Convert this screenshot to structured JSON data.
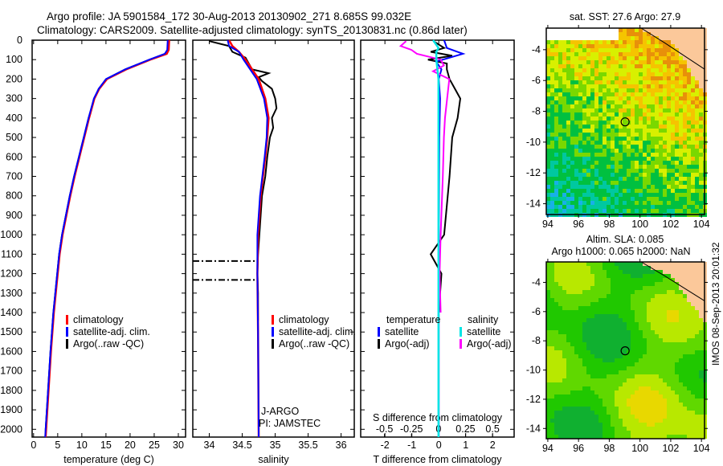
{
  "title_line1": "Argo profile: JA 5901584_172 30-Aug-2013 20130902_271 8.685S 99.032E",
  "title_line2": "Climatology: CARS2009. Satellite-adjusted climatology: synTS_20130831.nc (0.86d later)",
  "footer_stamp": "IMOS 08-Sep-2013 20:01:32",
  "colors": {
    "climatology": "#ff0000",
    "satellite": "#0000ff",
    "argo": "#000000",
    "sal_sat": "#00e5e5",
    "sal_argo": "#ff00ff"
  },
  "chart_data": [
    {
      "type": "line",
      "name": "temperature",
      "xlabel": "temperature (deg C)",
      "ylabel": "depth",
      "xlim": [
        -0.3,
        31.5
      ],
      "ylim": [
        2040,
        0
      ],
      "xticks": [
        "0",
        "5",
        "10",
        "15",
        "20",
        "25",
        "30"
      ],
      "yticks": [
        "0",
        "100",
        "200",
        "300",
        "400",
        "500",
        "600",
        "700",
        "800",
        "900",
        "1000",
        "1100",
        "1200",
        "1300",
        "1400",
        "1500",
        "1600",
        "1700",
        "1800",
        "1900",
        "2000"
      ],
      "legend": [
        "climatology",
        "satellite-adj. clim.",
        "Argo(..raw -QC)"
      ],
      "series": [
        {
          "name": "climatology",
          "depth": [
            0,
            50,
            70,
            100,
            150,
            200,
            250,
            300,
            400,
            500,
            600,
            700,
            800,
            900,
            1000,
            1100,
            1200,
            1400,
            1600,
            1800,
            2000,
            2040
          ],
          "values": [
            28.1,
            28.0,
            27.6,
            24.2,
            19.2,
            15.2,
            13.6,
            12.6,
            11.5,
            10.5,
            9.5,
            8.5,
            7.6,
            6.8,
            6.0,
            5.4,
            5.0,
            4.2,
            3.6,
            3.1,
            2.6,
            2.5
          ]
        },
        {
          "name": "satellite-adj. clim.",
          "depth": [
            0,
            50,
            70,
            100,
            150,
            200,
            250,
            300,
            400,
            500,
            600,
            700,
            800,
            900,
            1000,
            1100,
            1200,
            1400,
            1600,
            1800,
            2000,
            2040
          ],
          "values": [
            27.8,
            27.7,
            27.2,
            24.0,
            19.0,
            15.0,
            13.5,
            12.5,
            11.4,
            10.4,
            9.4,
            8.4,
            7.5,
            6.7,
            5.9,
            5.3,
            4.9,
            4.1,
            3.5,
            3.0,
            2.5,
            2.4
          ]
        },
        {
          "name": "Argo(..raw -QC)",
          "depth": [
            5,
            50,
            70,
            100,
            150,
            200,
            250,
            300,
            400,
            500,
            600,
            700,
            800,
            900,
            1000,
            1100,
            1200,
            1400,
            1600,
            1800,
            2000,
            2040
          ],
          "values": [
            27.9,
            27.9,
            27.3,
            24.1,
            19.0,
            15.1,
            13.5,
            12.6,
            11.4,
            10.4,
            9.4,
            8.4,
            7.5,
            6.7,
            5.9,
            5.3,
            4.9,
            4.1,
            3.5,
            3.0,
            2.5,
            2.5
          ]
        }
      ]
    },
    {
      "type": "line",
      "name": "salinity",
      "xlabel": "salinity",
      "xlim": [
        33.75,
        36.2
      ],
      "ylim": [
        2040,
        0
      ],
      "xticks": [
        "34",
        "34.5",
        "35",
        "35.5",
        "36"
      ],
      "legend": [
        "climatology",
        "satellite-adj. clim.",
        "Argo(..raw -QC)"
      ],
      "annotations": [
        "J-ARGO",
        "PI: JAMSTEC"
      ],
      "flag_depths": [
        1135,
        1232
      ],
      "series": [
        {
          "name": "climatology",
          "depth": [
            0,
            30,
            60,
            100,
            150,
            200,
            300,
            400,
            500,
            600,
            800,
            1000,
            1200,
            1500,
            2040
          ],
          "values": [
            34.3,
            34.35,
            34.45,
            34.55,
            34.65,
            34.75,
            34.85,
            34.9,
            34.88,
            34.85,
            34.78,
            34.74,
            34.73,
            34.74,
            34.75
          ]
        },
        {
          "name": "satellite-adj. clim.",
          "depth": [
            0,
            30,
            60,
            100,
            150,
            200,
            300,
            400,
            500,
            600,
            800,
            1000,
            1200,
            1500,
            2040
          ],
          "values": [
            34.28,
            34.3,
            34.45,
            34.52,
            34.62,
            34.72,
            34.83,
            34.88,
            34.87,
            34.84,
            34.77,
            34.73,
            34.73,
            34.74,
            34.75
          ]
        },
        {
          "name": "Argo(..raw -QC)",
          "depth": [
            5,
            30,
            60,
            90,
            120,
            150,
            170,
            190,
            210,
            250,
            300,
            350,
            400,
            450,
            500,
            600,
            700,
            800,
            900,
            1000,
            1100,
            1200,
            1300,
            1440
          ],
          "values": [
            34.0,
            34.3,
            34.35,
            34.55,
            34.6,
            34.65,
            34.9,
            34.75,
            34.8,
            34.95,
            35.0,
            35.02,
            34.95,
            34.97,
            34.92,
            34.88,
            34.85,
            34.8,
            34.78,
            34.76,
            34.74,
            34.73,
            34.74,
            34.74
          ]
        }
      ]
    },
    {
      "type": "line",
      "name": "difference",
      "xlabel": "T difference from climatology",
      "x2label": "S difference from climatology",
      "xlim": [
        -2.9,
        2.8
      ],
      "x2lim": [
        -0.72,
        0.7
      ],
      "xticks": [
        "-2",
        "-1",
        "0",
        "1",
        "2"
      ],
      "x2ticks": [
        "-0.5",
        "-0.25",
        "0",
        "0.25",
        "0.5"
      ],
      "legend": {
        "temperature_header": "temperature",
        "salinity_header": "salinity",
        "items": [
          "satellite",
          "Argo(-adj)",
          "satellite",
          "Argo(-adj)"
        ]
      },
      "series": [
        {
          "name": "T satellite",
          "depth": [
            0,
            40,
            60,
            70,
            90,
            110,
            150,
            200,
            300,
            500,
            1000,
            1500,
            2040
          ],
          "values": [
            0.2,
            0.3,
            0.7,
            0.9,
            0.4,
            -0.1,
            0.1,
            0,
            0.05,
            0.02,
            0,
            0,
            0
          ]
        },
        {
          "name": "T Argo(-adj)",
          "depth": [
            5,
            40,
            60,
            80,
            100,
            120,
            150,
            200,
            250,
            300,
            400,
            500,
            700,
            1000,
            1100,
            1200,
            1400
          ],
          "values": [
            -0.2,
            0.2,
            -0.3,
            0.5,
            -0.4,
            0.3,
            0.3,
            0.4,
            0.6,
            0.8,
            0.7,
            0.5,
            0.4,
            0.2,
            -0.3,
            0.1,
            0
          ]
        },
        {
          "name": "S satellite",
          "depth": [
            0,
            40,
            60,
            100,
            200,
            500,
            1000,
            2040
          ],
          "values": [
            -0.05,
            0,
            -0.02,
            -0.02,
            0,
            0,
            0,
            0
          ]
        },
        {
          "name": "S Argo(-adj)",
          "depth": [
            5,
            30,
            50,
            70,
            100,
            130,
            160,
            200,
            300,
            400,
            500,
            700,
            1000,
            1200,
            1400
          ],
          "values": [
            -0.3,
            -0.35,
            -0.25,
            -0.2,
            0.02,
            0.05,
            -0.05,
            0.1,
            0.08,
            0.06,
            0.05,
            0.04,
            0.02,
            0.01,
            0.02
          ]
        }
      ]
    },
    {
      "type": "heatmap",
      "name": "sst_map",
      "title": "sat. SST: 27.6 Argo: 27.9",
      "xticks": [
        "94",
        "96",
        "98",
        "100",
        "102",
        "104"
      ],
      "yticks": [
        "-4",
        "-6",
        "-8",
        "-10",
        "-12",
        "-14"
      ],
      "xlim": [
        93.9,
        104.2
      ],
      "ylim": [
        -14.7,
        -2.6
      ],
      "marker": [
        99.032,
        -8.685
      ]
    },
    {
      "type": "heatmap",
      "name": "sla_map",
      "title_line1": "Altim. SLA: 0.085",
      "title_line2": "Argo h1000: 0.065 h2000: NaN",
      "xticks": [
        "94",
        "96",
        "98",
        "100",
        "102",
        "104"
      ],
      "yticks": [
        "-4",
        "-6",
        "-8",
        "-10",
        "-12",
        "-14"
      ],
      "xlim": [
        93.9,
        104.2
      ],
      "ylim": [
        -14.7,
        -2.6
      ],
      "marker": [
        99.032,
        -8.685
      ]
    }
  ]
}
